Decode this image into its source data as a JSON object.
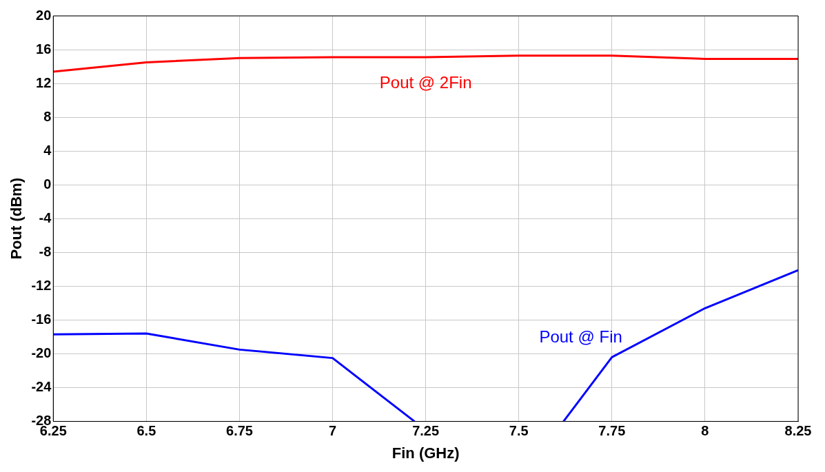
{
  "chart_data": {
    "type": "line",
    "xlabel": "Fin (GHz)",
    "ylabel": "Pout (dBm)",
    "xlim": [
      6.25,
      8.25
    ],
    "xticks": [
      6.25,
      6.5,
      6.75,
      7,
      7.25,
      7.5,
      7.75,
      8,
      8.25
    ],
    "ylim": [
      -28,
      20
    ],
    "yticks": [
      -28,
      -24,
      -20,
      -16,
      -12,
      -8,
      -4,
      0,
      4,
      8,
      12,
      16,
      20
    ],
    "grid": true,
    "legend": false,
    "marker": "none",
    "line_style": "solid",
    "series": [
      {
        "name": "Pout @ 2Fin",
        "color": "#ff0000",
        "x": [
          6.25,
          6.5,
          6.75,
          7,
          7.25,
          7.5,
          7.75,
          8,
          8.25
        ],
        "values": [
          13.4,
          14.5,
          15.0,
          15.1,
          15.1,
          15.3,
          15.3,
          14.9,
          14.9
        ]
      },
      {
        "name": "Pout @ Fin",
        "color": "#0000ff",
        "x": [
          6.25,
          6.5,
          6.75,
          7,
          7.22,
          7.4,
          7.62,
          7.75,
          8,
          8.25
        ],
        "values": [
          -17.7,
          -17.6,
          -19.5,
          -20.5,
          -28,
          null,
          -28,
          -20.4,
          -14.6,
          -10.1
        ]
      }
    ]
  }
}
